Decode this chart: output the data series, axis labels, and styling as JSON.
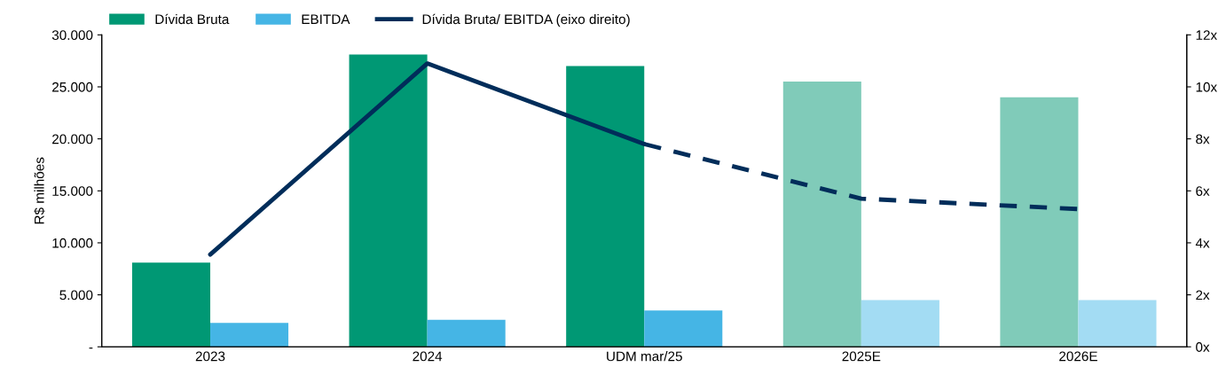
{
  "chart_data": {
    "type": "bar",
    "ylabel": "R$ milhões",
    "categories": [
      "2023",
      "2024",
      "UDM mar/25",
      "2025E",
      "2026E"
    ],
    "series": [
      {
        "name": "Dívida Bruta",
        "color": "#009874",
        "colors": [
          "#009874",
          "#009874",
          "#009874",
          "#80cbb9",
          "#80cbb9"
        ],
        "values": [
          8100,
          28100,
          27000,
          25500,
          24000
        ]
      },
      {
        "name": "EBITDA",
        "color": "#45b5e5",
        "colors": [
          "#45b5e5",
          "#45b5e5",
          "#45b5e5",
          "#a3dcf3",
          "#a3dcf3"
        ],
        "values": [
          2300,
          2600,
          3500,
          4500,
          4500
        ]
      },
      {
        "name": "Dívida Bruta/ EBITDA (eixo direito)",
        "type": "line",
        "axis": "y2",
        "color": "#002d5a",
        "line_style": "solid",
        "values": [
          3.55,
          10.9,
          7.8,
          null,
          null
        ]
      },
      {
        "type": "line",
        "axis": "y2",
        "color": "#002d5a",
        "line_style": "dashed",
        "values": [
          null,
          null,
          7.8,
          5.7,
          5.3
        ]
      }
    ],
    "ylim": [
      0,
      30000
    ],
    "yticks": [
      {
        "value": 0,
        "label": "-"
      },
      {
        "value": 5000,
        "label": "5.000"
      },
      {
        "value": 10000,
        "label": "10.000"
      },
      {
        "value": 15000,
        "label": "15.000"
      },
      {
        "value": 20000,
        "label": "20.000"
      },
      {
        "value": 25000,
        "label": "25.000"
      },
      {
        "value": 30000,
        "label": "30.000"
      }
    ],
    "y2lim": [
      0,
      12
    ],
    "y2ticks": [
      {
        "value": 0,
        "label": "0x"
      },
      {
        "value": 2,
        "label": "2x"
      },
      {
        "value": 4,
        "label": "4x"
      },
      {
        "value": 6,
        "label": "6x"
      },
      {
        "value": 8,
        "label": "8x"
      },
      {
        "value": 10,
        "label": "10x"
      },
      {
        "value": 12,
        "label": "12x"
      }
    ],
    "legend": "top left",
    "grid": false
  }
}
